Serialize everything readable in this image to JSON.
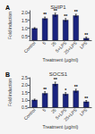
{
  "chart_data": [
    {
      "type": "bar",
      "panel_label": "A",
      "title": "SHIP1",
      "xlabel": "Treatment (μg/ml)",
      "ylabel": "Fold induction",
      "categories": [
        "Control",
        "5",
        "25",
        "5+LPS",
        "25+LPS",
        "LPS"
      ],
      "values": [
        1.0,
        1.62,
        1.85,
        1.52,
        1.8,
        0.38
      ],
      "errors": [
        0.04,
        0.08,
        0.1,
        0.09,
        0.08,
        0.06
      ],
      "annotations": [
        {
          "x": "5",
          "text": "**"
        },
        {
          "x": "25",
          "text": "**"
        },
        {
          "x": "5+LPS",
          "text": "**"
        },
        {
          "x": "25+LPS",
          "text": "**"
        },
        {
          "x": "LPS",
          "text": "**"
        }
      ],
      "color": "#1a237e",
      "ylim": [
        0.25,
        2.1
      ],
      "yticks": [
        0.5,
        {
          "value": 1.0,
          "label": "1.0"
        },
        1.5,
        {
          "value": 2.0,
          "label": "2.0"
        }
      ],
      "grid": false
    },
    {
      "type": "bar",
      "panel_label": "B",
      "title": "SOCS1",
      "xlabel": "Treatment (μg/ml)",
      "ylabel": "Fold induction",
      "categories": [
        "Control",
        "5",
        "25",
        "5+LPS",
        "25+LPS",
        "LPS"
      ],
      "values": [
        1.0,
        1.45,
        2.08,
        1.4,
        1.62,
        0.88
      ],
      "errors": [
        0.05,
        0.1,
        0.12,
        0.09,
        0.1,
        0.07
      ],
      "annotations": [
        {
          "x": "5",
          "text": "**"
        },
        {
          "x": "25",
          "text": "**"
        },
        {
          "x": "5+LPS",
          "text": "*"
        },
        {
          "x": "25+LPS",
          "text": "**"
        },
        {
          "x": "LPS",
          "text": "**"
        }
      ],
      "color": "#1a237e",
      "ylim": [
        0.5,
        2.5
      ],
      "yticks": [
        0.5,
        {
          "value": 1.0,
          "label": "1.0"
        },
        1.5,
        {
          "value": 2.0,
          "label": "2.0"
        },
        2.5
      ],
      "grid": false
    }
  ]
}
